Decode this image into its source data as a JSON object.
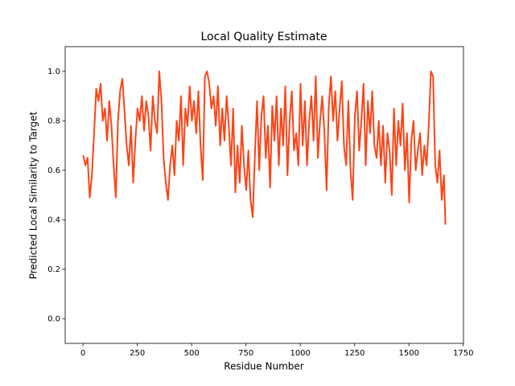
{
  "chart_data": {
    "type": "line",
    "title": "Local Quality Estimate",
    "xlabel": "Residue Number",
    "ylabel": "Predicted Local Similarity to Target",
    "color": "#fc4417",
    "xlim": [
      -82,
      1751
    ],
    "ylim": [
      -0.1,
      1.1
    ],
    "xticks": [
      0,
      250,
      500,
      750,
      1000,
      1250,
      1500,
      1750
    ],
    "yticks": [
      {
        "value": 0,
        "label": "0.0"
      },
      {
        "value": 0.2,
        "label": "0.2"
      },
      {
        "value": 0.4,
        "label": "0.4"
      },
      {
        "value": 0.6,
        "label": "0.6"
      },
      {
        "value": 0.8,
        "label": "0.8"
      },
      {
        "value": 1,
        "label": "1.0"
      }
    ],
    "x": [
      1,
      11,
      21,
      31,
      41,
      51,
      61,
      71,
      81,
      91,
      101,
      111,
      121,
      131,
      141,
      151,
      161,
      171,
      181,
      191,
      201,
      211,
      221,
      231,
      241,
      251,
      261,
      271,
      281,
      291,
      301,
      311,
      321,
      331,
      341,
      351,
      361,
      371,
      381,
      391,
      401,
      411,
      421,
      431,
      441,
      451,
      461,
      471,
      481,
      491,
      501,
      511,
      521,
      531,
      541,
      551,
      561,
      571,
      581,
      591,
      601,
      611,
      621,
      631,
      641,
      651,
      661,
      671,
      681,
      691,
      701,
      711,
      721,
      731,
      741,
      751,
      761,
      771,
      781,
      791,
      801,
      811,
      821,
      831,
      841,
      851,
      861,
      871,
      881,
      891,
      901,
      911,
      921,
      931,
      941,
      951,
      961,
      971,
      981,
      991,
      1001,
      1011,
      1021,
      1031,
      1041,
      1051,
      1061,
      1071,
      1081,
      1091,
      1101,
      1111,
      1121,
      1131,
      1141,
      1151,
      1161,
      1171,
      1181,
      1191,
      1201,
      1211,
      1221,
      1231,
      1241,
      1251,
      1261,
      1271,
      1281,
      1291,
      1301,
      1311,
      1321,
      1331,
      1341,
      1351,
      1361,
      1371,
      1381,
      1391,
      1401,
      1411,
      1421,
      1431,
      1441,
      1451,
      1461,
      1471,
      1481,
      1491,
      1501,
      1511,
      1521,
      1531,
      1541,
      1551,
      1561,
      1571,
      1581,
      1591,
      1601,
      1611,
      1621,
      1631,
      1641,
      1651,
      1661,
      1668
    ],
    "values": [
      0.66,
      0.62,
      0.65,
      0.49,
      0.58,
      0.75,
      0.93,
      0.88,
      0.95,
      0.8,
      0.85,
      0.72,
      0.88,
      0.78,
      0.62,
      0.49,
      0.8,
      0.92,
      0.97,
      0.84,
      0.7,
      0.62,
      0.78,
      0.55,
      0.72,
      0.85,
      0.8,
      0.9,
      0.76,
      0.88,
      0.82,
      0.68,
      0.9,
      0.8,
      0.75,
      1.0,
      0.88,
      0.65,
      0.55,
      0.48,
      0.62,
      0.7,
      0.58,
      0.8,
      0.72,
      0.9,
      0.62,
      0.85,
      0.78,
      0.94,
      0.8,
      0.88,
      0.75,
      0.92,
      0.7,
      0.56,
      0.98,
      1.0,
      0.95,
      0.85,
      0.9,
      0.78,
      0.94,
      0.7,
      0.85,
      0.72,
      0.9,
      0.78,
      0.62,
      0.85,
      0.51,
      0.7,
      0.55,
      0.78,
      0.62,
      0.52,
      0.68,
      0.48,
      0.41,
      0.66,
      0.88,
      0.6,
      0.82,
      0.9,
      0.65,
      0.78,
      0.53,
      0.86,
      0.72,
      0.9,
      0.62,
      0.85,
      0.7,
      0.94,
      0.58,
      0.8,
      0.92,
      0.68,
      0.75,
      0.62,
      0.95,
      0.7,
      0.88,
      0.62,
      0.8,
      0.9,
      0.72,
      0.98,
      0.65,
      0.8,
      0.9,
      0.75,
      0.52,
      0.86,
      0.98,
      0.8,
      0.92,
      0.72,
      0.85,
      0.96,
      0.7,
      0.62,
      0.88,
      0.6,
      0.48,
      0.82,
      0.92,
      0.68,
      0.8,
      0.95,
      0.62,
      0.88,
      0.75,
      0.92,
      0.7,
      0.65,
      0.8,
      0.62,
      0.78,
      0.55,
      0.75,
      0.68,
      0.5,
      0.85,
      0.62,
      0.8,
      0.7,
      0.87,
      0.6,
      0.75,
      0.47,
      0.72,
      0.8,
      0.6,
      0.68,
      0.75,
      0.58,
      0.7,
      0.62,
      0.78,
      1.0,
      0.98,
      0.62,
      0.55,
      0.68,
      0.48,
      0.58,
      0.38
    ]
  }
}
